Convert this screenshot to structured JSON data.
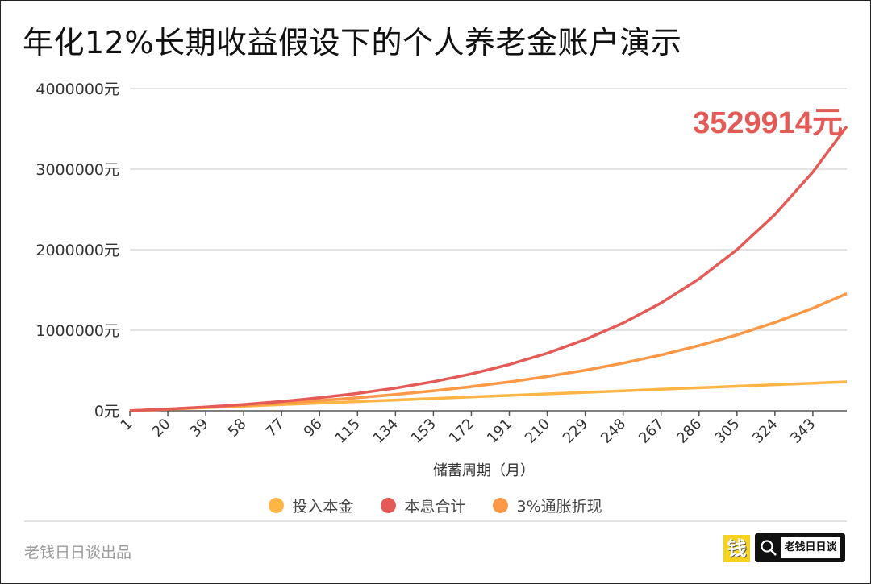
{
  "title": "年化12%长期收益假设下的个人养老金账户演示",
  "footer": {
    "credit": "老钱日日谈出品",
    "logo_char": "钱",
    "logo_text": "老钱日日谈"
  },
  "chart_data": {
    "type": "line",
    "title": "年化12%长期收益假设下的个人养老金账户演示",
    "xlabel": "储蓄周期（月）",
    "ylabel": "",
    "x_ticks": [
      "1",
      "20",
      "39",
      "58",
      "77",
      "96",
      "115",
      "134",
      "153",
      "172",
      "191",
      "210",
      "229",
      "248",
      "267",
      "286",
      "305",
      "324",
      "343"
    ],
    "xlim": [
      1,
      360
    ],
    "ylim": [
      0,
      4000000
    ],
    "y_ticks": [
      0,
      1000000,
      2000000,
      3000000,
      4000000
    ],
    "y_tick_labels": [
      "0元",
      "1000000元",
      "2000000元",
      "3000000元",
      "4000000元"
    ],
    "grid": true,
    "legend_position": "bottom",
    "x": [
      1,
      20,
      39,
      58,
      77,
      96,
      115,
      134,
      153,
      172,
      191,
      210,
      229,
      248,
      267,
      286,
      305,
      324,
      343,
      360
    ],
    "series": [
      {
        "name": "投入本金",
        "color": "#FDB545",
        "values": [
          1000,
          20000,
          39000,
          58000,
          77000,
          96000,
          115000,
          134000,
          153000,
          172000,
          191000,
          210000,
          229000,
          248000,
          267000,
          286000,
          305000,
          324000,
          343000,
          360000
        ]
      },
      {
        "name": "本息合计",
        "color": "#E45A56",
        "values": [
          1010,
          22239,
          47886,
          78872,
          116306,
          161526,
          216157,
          282160,
          361898,
          458230,
          574611,
          715209,
          885070,
          1090275,
          1338189,
          1637675,
          1999507,
          2436595,
          2964653,
          3529914
        ]
      },
      {
        "name": "3%通胀折现",
        "color": "#FD9846",
        "values": [
          1008,
          21170,
          43501,
          68372,
          96215,
          127510,
          162834,
          202836,
          248262,
          299973,
          358963,
          426368,
          503502,
          591877,
          693244,
          809611,
          943291,
          1096924,
          1273619,
          1454276
        ]
      }
    ],
    "annotation": {
      "text": "3529914元",
      "color": "#E45A56"
    }
  }
}
